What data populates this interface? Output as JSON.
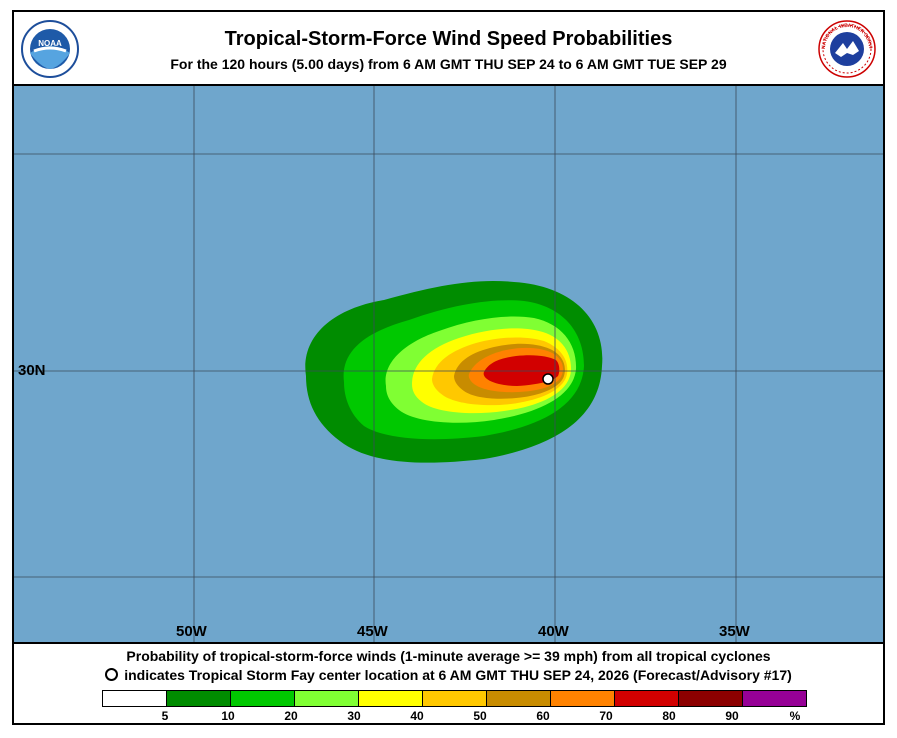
{
  "header": {
    "title": "Tropical-Storm-Force Wind Speed Probabilities",
    "subtitle": "For the 120 hours (5.00 days) from 6 AM GMT THU SEP 24 to 6 AM GMT TUE SEP 29",
    "left_logo": {
      "name": "noaa-logo",
      "text": "NOAA"
    },
    "right_logo": {
      "name": "nws-logo",
      "text": "NATIONAL WEATHER SERVICE"
    }
  },
  "map": {
    "ocean_color": "#6fa6cc",
    "latitude_labels": [
      "30N"
    ],
    "longitude_labels": [
      "50W",
      "45W",
      "40W",
      "35W"
    ],
    "storm_marker": {
      "name": "storm-center-marker"
    }
  },
  "footer": {
    "line1": "Probability of tropical-storm-force winds (1-minute average >= 39 mph) from all tropical cyclones",
    "line2": "indicates Tropical Storm Fay center location at 6 AM GMT THU SEP 24, 2026 (Forecast/Advisory #17)"
  },
  "legend": {
    "colors": [
      "#ffffff",
      "#008c00",
      "#00c800",
      "#80ff33",
      "#ffff00",
      "#ffc800",
      "#c88c00",
      "#ff8200",
      "#d20000",
      "#8c0000",
      "#960096"
    ],
    "labels": [
      "5",
      "10",
      "20",
      "30",
      "40",
      "50",
      "60",
      "70",
      "80",
      "90",
      "%"
    ]
  }
}
